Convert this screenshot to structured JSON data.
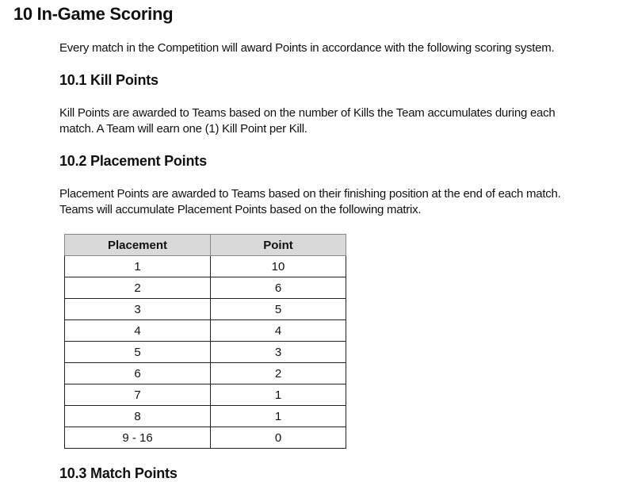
{
  "section_title": "10 In-Game Scoring",
  "intro": "Every match in the Competition will award Points in accordance with the following scoring system.",
  "kill_points": {
    "heading": "10.1 Kill Points",
    "lines": [
      "Kill Points are awarded to Teams based on the number of Kills the Team accumulates during each",
      "match. A Team will earn one (1) Kill Point per Kill."
    ]
  },
  "placement_points": {
    "heading": "10.2 Placement Points",
    "lines": [
      "Placement Points are awarded to Teams based on their finishing position at the end of each match.",
      "Teams will accumulate Placement Points based on the following matrix."
    ],
    "table": {
      "headers": [
        "Placement",
        "Point"
      ],
      "rows": [
        [
          "1",
          "10"
        ],
        [
          "2",
          "6"
        ],
        [
          "3",
          "5"
        ],
        [
          "4",
          "4"
        ],
        [
          "5",
          "3"
        ],
        [
          "6",
          "2"
        ],
        [
          "7",
          "1"
        ],
        [
          "8",
          "1"
        ],
        [
          "9 - 16",
          "0"
        ]
      ]
    }
  },
  "next_heading": "10.3 Match Points"
}
